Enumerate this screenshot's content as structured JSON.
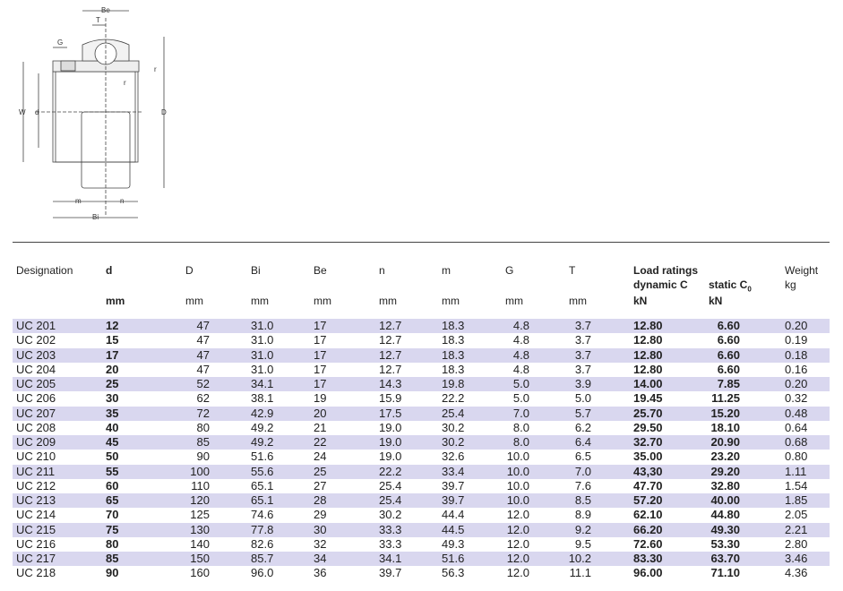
{
  "drawing": {
    "labels": {
      "Be": "Be",
      "T": "T",
      "G": "G",
      "W": "W",
      "d": "d",
      "D": "D",
      "r1": "r",
      "r2": "r",
      "m": "m",
      "n": "n",
      "Bi": "Bi"
    }
  },
  "headers": {
    "designation": "Designation",
    "d": "d",
    "D": "D",
    "Bi": "Bi",
    "Be": "Be",
    "n": "n",
    "m": "m",
    "G": "G",
    "T": "T",
    "load": "Load ratings",
    "dynamic": "dynamic C",
    "static": "static C",
    "static_sub": "0",
    "weight": "Weight",
    "weight_unit": "kg",
    "mm": "mm",
    "kN": "kN"
  },
  "rows": [
    [
      "UC 201",
      "12",
      "47",
      "31.0",
      "17",
      "12.7",
      "18.3",
      "4.8",
      "3.7",
      "12.80",
      "6.60",
      "0.20"
    ],
    [
      "UC 202",
      "15",
      "47",
      "31.0",
      "17",
      "12.7",
      "18.3",
      "4.8",
      "3.7",
      "12.80",
      "6.60",
      "0.19"
    ],
    [
      "UC 203",
      "17",
      "47",
      "31.0",
      "17",
      "12.7",
      "18.3",
      "4.8",
      "3.7",
      "12.80",
      "6.60",
      "0.18"
    ],
    [
      "UC 204",
      "20",
      "47",
      "31.0",
      "17",
      "12.7",
      "18.3",
      "4.8",
      "3.7",
      "12.80",
      "6.60",
      "0.16"
    ],
    [
      "UC 205",
      "25",
      "52",
      "34.1",
      "17",
      "14.3",
      "19.8",
      "5.0",
      "3.9",
      "14.00",
      "7.85",
      "0.20"
    ],
    [
      "UC 206",
      "30",
      "62",
      "38.1",
      "19",
      "15.9",
      "22.2",
      "5.0",
      "5.0",
      "19.45",
      "11.25",
      "0.32"
    ],
    [
      "UC 207",
      "35",
      "72",
      "42.9",
      "20",
      "17.5",
      "25.4",
      "7.0",
      "5.7",
      "25.70",
      "15.20",
      "0.48"
    ],
    [
      "UC 208",
      "40",
      "80",
      "49.2",
      "21",
      "19.0",
      "30.2",
      "8.0",
      "6.2",
      "29.50",
      "18.10",
      "0.64"
    ],
    [
      "UC 209",
      "45",
      "85",
      "49.2",
      "22",
      "19.0",
      "30.2",
      "8.0",
      "6.4",
      "32.70",
      "20.90",
      "0.68"
    ],
    [
      "UC 210",
      "50",
      "90",
      "51.6",
      "24",
      "19.0",
      "32.6",
      "10.0",
      "6.5",
      "35.00",
      "23.20",
      "0.80"
    ],
    [
      "UC 211",
      "55",
      "100",
      "55.6",
      "25",
      "22.2",
      "33.4",
      "10.0",
      "7.0",
      "43,30",
      "29.20",
      "1.11"
    ],
    [
      "UC 212",
      "60",
      "110",
      "65.1",
      "27",
      "25.4",
      "39.7",
      "10.0",
      "7.6",
      "47.70",
      "32.80",
      "1.54"
    ],
    [
      "UC 213",
      "65",
      "120",
      "65.1",
      "28",
      "25.4",
      "39.7",
      "10.0",
      "8.5",
      "57.20",
      "40.00",
      "1.85"
    ],
    [
      "UC 214",
      "70",
      "125",
      "74.6",
      "29",
      "30.2",
      "44.4",
      "12.0",
      "8.9",
      "62.10",
      "44.80",
      "2.05"
    ],
    [
      "UC 215",
      "75",
      "130",
      "77.8",
      "30",
      "33.3",
      "44.5",
      "12.0",
      "9.2",
      "66.20",
      "49.30",
      "2.21"
    ],
    [
      "UC 216",
      "80",
      "140",
      "82.6",
      "32",
      "33.3",
      "49.3",
      "12.0",
      "9.5",
      "72.60",
      "53.30",
      "2.80"
    ],
    [
      "UC 217",
      "85",
      "150",
      "85.7",
      "34",
      "34.1",
      "51.6",
      "12.0",
      "10.2",
      "83.30",
      "63.70",
      "3.46"
    ],
    [
      "UC 218",
      "90",
      "160",
      "96.0",
      "36",
      "39.7",
      "56.3",
      "12.0",
      "11.1",
      "96.00",
      "71.10",
      "4.36"
    ]
  ]
}
